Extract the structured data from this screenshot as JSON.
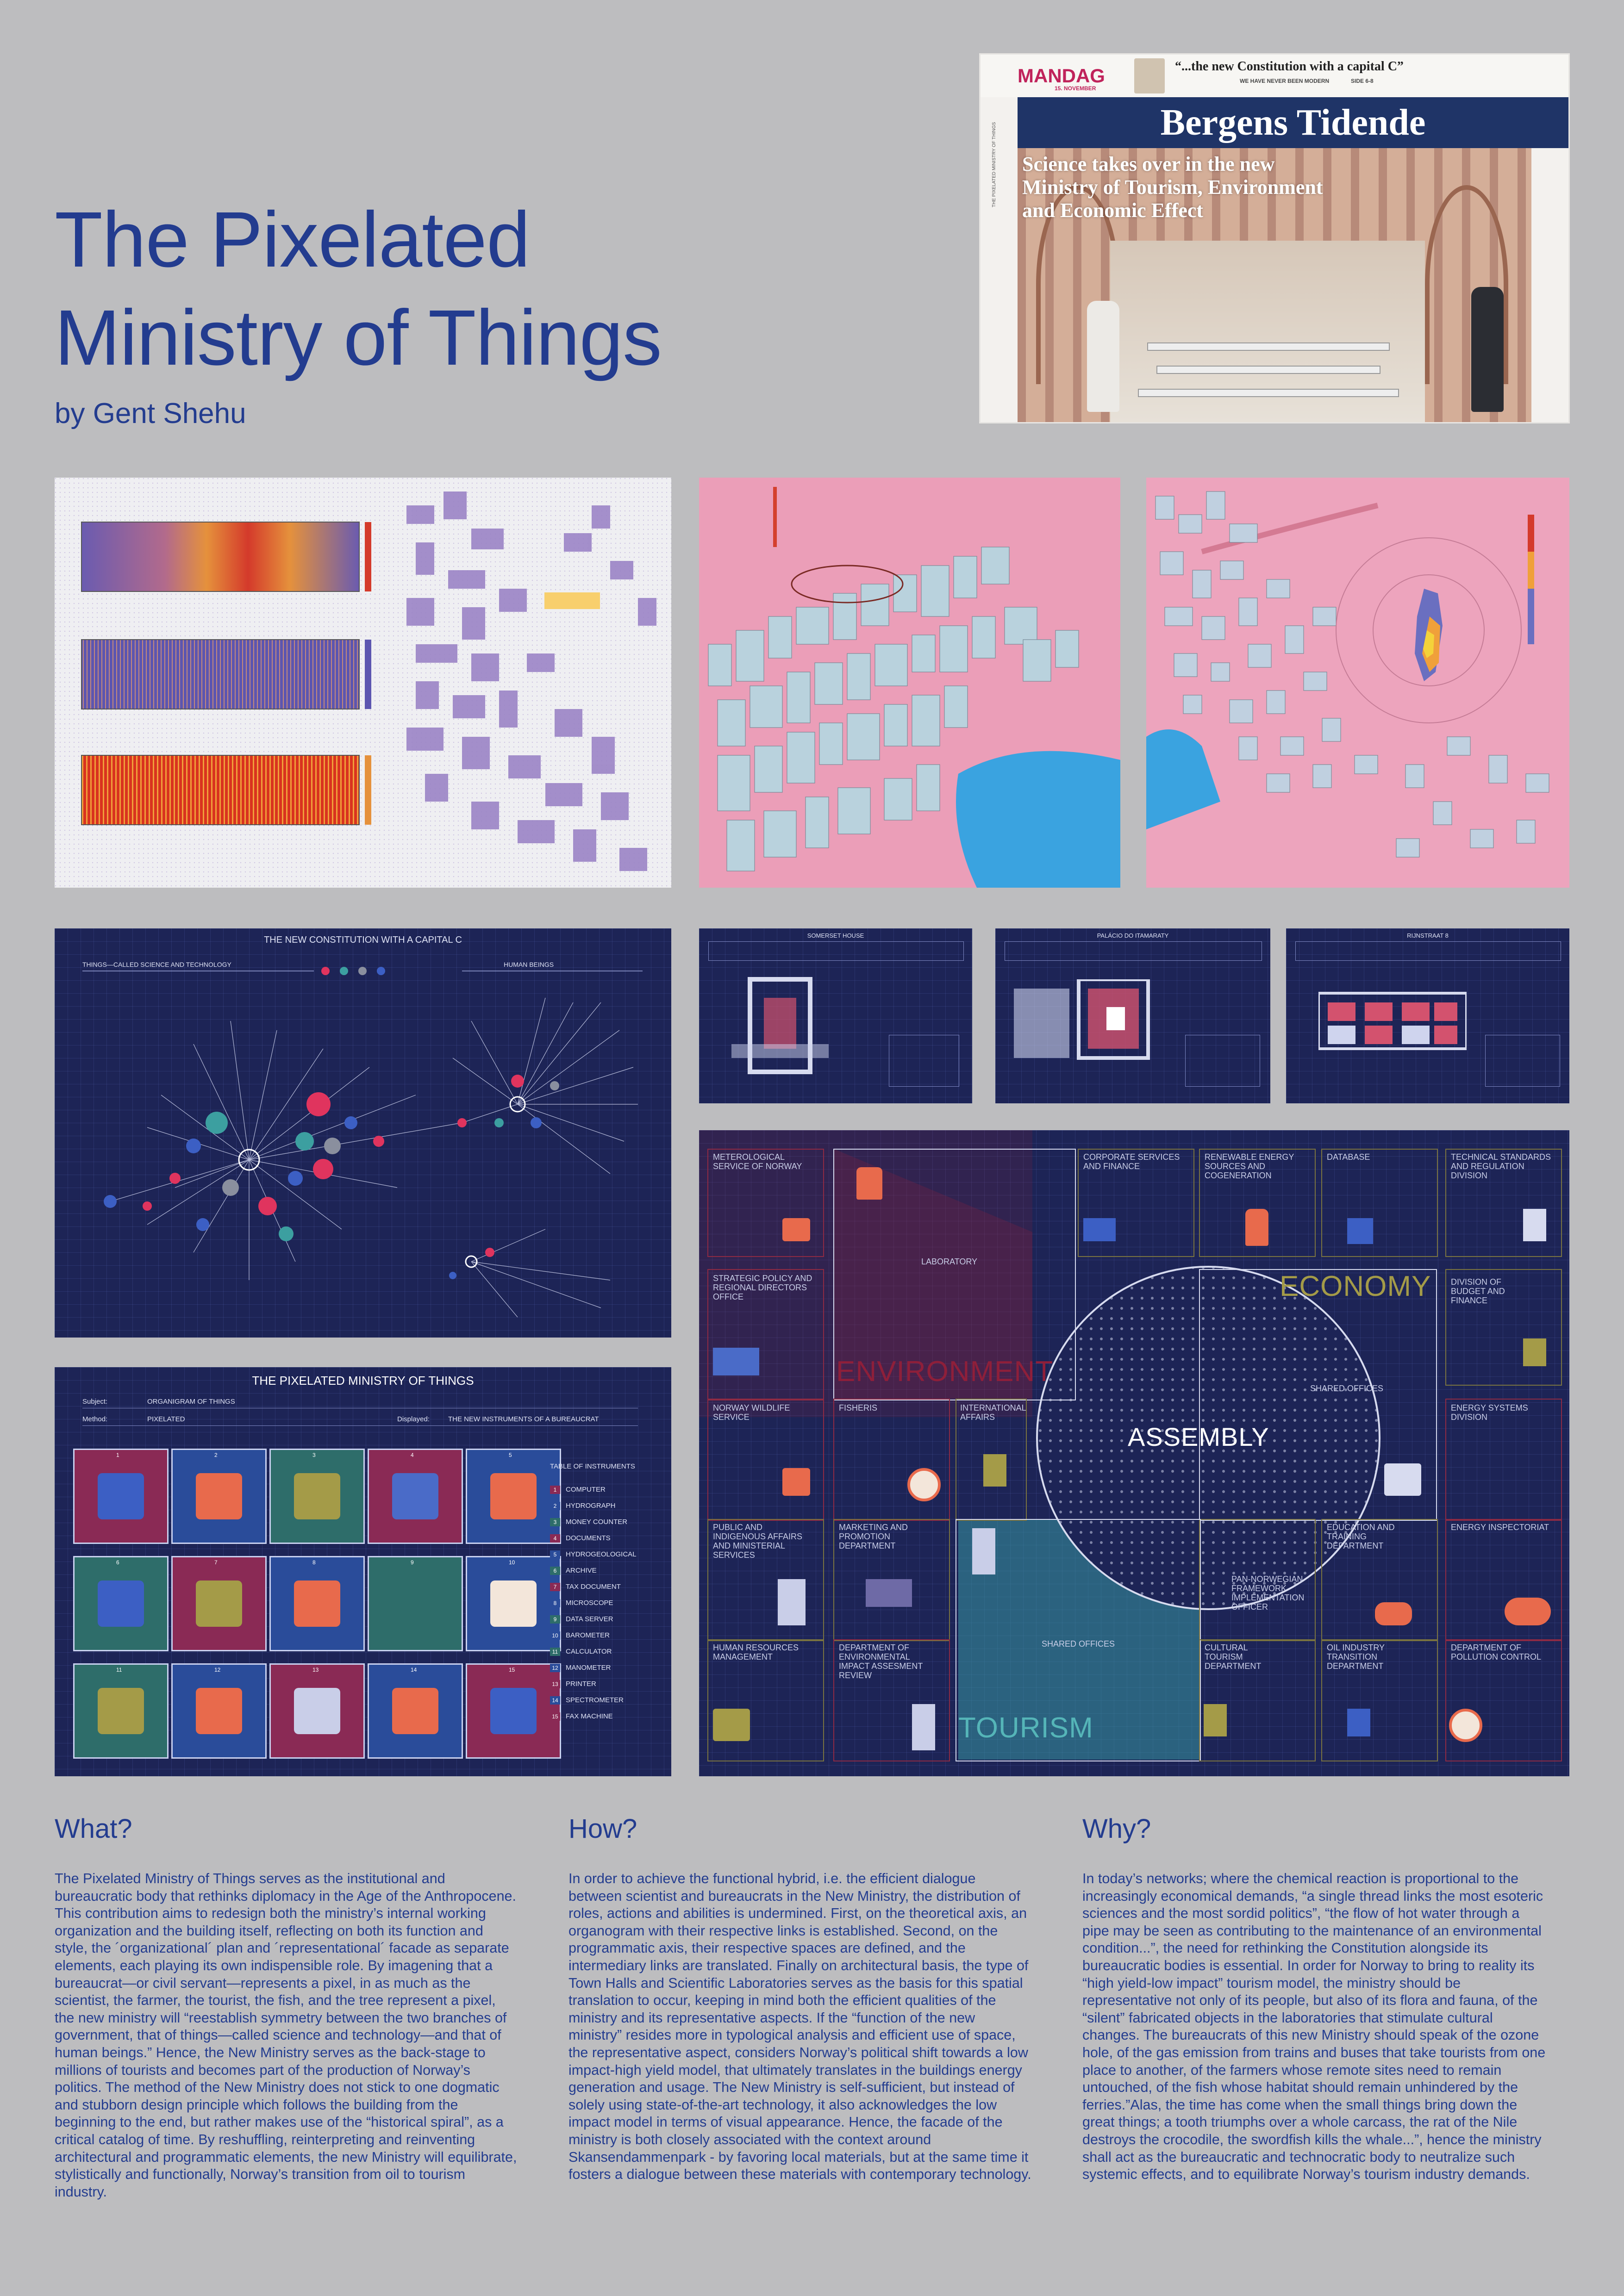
{
  "poster": {
    "title_line1": "The Pixelated",
    "title_line2": "Ministry of Things",
    "author": "by Gent Shehu"
  },
  "newspaper": {
    "day": "MANDAG",
    "date": "15. NOVEMBER",
    "quote": "“...the new Constitution with a capital C”",
    "subline": "WE HAVE NEVER BEEN MODERN",
    "subline_page": "SIDE 6-8",
    "masthead": "Bergens Tidende",
    "headline": "Science takes over in the new Ministry of Tourism, Environment and Economic Effect",
    "side_text": "THE PIXELATED MINISTRY OF THINGS"
  },
  "constitution": {
    "title": "THE NEW CONSTITUTION WITH A CAPITAL C",
    "left_label": "THINGS—CALLED SCIENCE AND TECHNOLOGY",
    "right_label": "HUMAN BEINGS"
  },
  "organigram": {
    "title": "THE PIXELATED MINISTRY OF THINGS",
    "subject_label": "Subject:",
    "subject_value": "ORGANIGRAM OF THINGS",
    "method_label": "Method:",
    "method_value": "PIXELATED",
    "displayed_label": "Displayed:",
    "displayed_value": "THE NEW INSTRUMENTS OF A BUREAUCRAT",
    "table_title": "TABLE OF INSTRUMENTS",
    "instruments": [
      {
        "n": "1",
        "name": "COMPUTER",
        "color": "#8a2a55"
      },
      {
        "n": "2",
        "name": "HYDROGRAPH",
        "color": "#2a4c9a"
      },
      {
        "n": "3",
        "name": "MONEY COUNTER",
        "color": "#2e6d6a"
      },
      {
        "n": "4",
        "name": "DOCUMENTS",
        "color": "#8a2a55"
      },
      {
        "n": "5",
        "name": "HYDROGEOLOGICAL",
        "color": "#2a4c9a"
      },
      {
        "n": "6",
        "name": "ARCHIVE",
        "color": "#2e6d6a"
      },
      {
        "n": "7",
        "name": "TAX DOCUMENT",
        "color": "#8a2a55"
      },
      {
        "n": "8",
        "name": "MICROSCOPE",
        "color": "#2a4c9a"
      },
      {
        "n": "9",
        "name": "DATA SERVER",
        "color": "#2e6d6a"
      },
      {
        "n": "10",
        "name": "BAROMETER",
        "color": "#2a4c9a"
      },
      {
        "n": "11",
        "name": "CALCULATOR",
        "color": "#2e6d6a"
      },
      {
        "n": "12",
        "name": "MANOMETER",
        "color": "#2a4c9a"
      },
      {
        "n": "13",
        "name": "PRINTER",
        "color": "#8a2a55"
      },
      {
        "n": "14",
        "name": "SPECTROMETER",
        "color": "#2a4c9a"
      },
      {
        "n": "15",
        "name": "FAX MACHINE",
        "color": "#8a2a55"
      }
    ]
  },
  "plans": {
    "plan1_title": "SOMERSET HOUSE",
    "plan2_title": "PALÁCIO DO ITAMARATY",
    "plan3_title": "RIJNSTRAAT 8"
  },
  "floorplan": {
    "rooms": {
      "met": "METEROLOGICAL SERVICE OF NORWAY",
      "corp": "CORPORATE SERVICES AND FINANCE",
      "renew": "RENEWABLE ENERGY SOURCES AND COGENERATION",
      "database": "DATABASE",
      "tech": "TECHNICAL STANDARDS AND REGULATION DIVISION",
      "lab": "LABORATORY",
      "strategic": "STRATEGIC POLICY AND REGIONAL DIRECTORS OFFICE",
      "budget": "DIVISION OF BUDGET AND FINANCE",
      "shared1": "SHARED OFFICES",
      "wildlife": "NORWAY WILDLIFE SERVICE",
      "fisheris": "FISHERIS",
      "intl": "INTERNATIONAL AFFAIRS",
      "energy_sys": "ENERGY SYSTEMS DIVISION",
      "public": "PUBLIC AND INDIGENOUS AFFAIRS AND MINISTERIAL SERVICES",
      "marketing": "MARKETING AND PROMOTION DEPARTMENT",
      "education": "EDUCATION AND TRAINING DEPARTMENT",
      "inspectoriat": "ENERGY INSPECTORIAT",
      "pan": "PAN-NORWEGIAN FRAMEWORK IMPLEMENTATION OFFICER",
      "hr": "HUMAN RESOURCES MANAGEMENT",
      "dept_env": "DEPARTMENT OF ENVIRONMENTAL IMPACT ASSESMENT REVIEW",
      "shared2": "SHARED OFFICES",
      "cultural": "CULTURAL TOURISM DEPARTMENT",
      "oil": "OIL INDUSTRY TRANSITION DEPARTMENT",
      "pollution": "DEPARTMENT OF POLLUTION CONTROL"
    },
    "economy": "ECONOMY",
    "environment": "ENVIRONMENT",
    "tourism": "TOURISM",
    "assembly": "ASSEMBLY",
    "colors": {
      "economy": "#a49b48",
      "environment": "#8e1f3a",
      "tourism": "#55b5b8"
    }
  },
  "sections": {
    "what_title": "What?",
    "what_body": "The Pixelated Ministry of Things serves as the institutional and bureaucratic body that rethinks diplomacy in the Age of the Anthropocene. This contribution aims to redesign both the ministry’s internal working organization and the building itself, reflecting on both its function and style, the ´organizational´ plan and ´representational´ facade as separate elements, each playing its own indispensible role. By imagening that a bureaucrat—or civil servant—represents a pixel, in as much as the scientist, the farmer, the tourist, the fish, and the tree represent a pixel, the new ministry will “reestablish symmetry between the two branches of government, that of things—called science and technology—and that of human beings.” Hence, the New Ministry serves as the back-stage to millions of tourists and becomes part of the production of Norway’s politics. The method of the New Ministry does not stick to one dogmatic and stubborn design principle which follows the building from the beginning to the end, but rather makes use of the “historical spiral”, as a critical catalog of time. By reshuffling, reinterpreting and reinventing architectural and programmatic elements, the new Ministry will equilibrate, stylistically and functionally, Norway’s transition from oil to tourism industry.",
    "how_title": "How?",
    "how_body": "In order to achieve the functional hybrid, i.e. the efficient dialogue between scientist and bureaucrats in the New Ministry, the distribution of roles, actions and abilities is undermined. First, on the theoretical axis, an organogram with their respective links is established. Second, on the programmatic axis, their respective spaces are defined, and the intermediary links are translated. Finally on architectural basis, the type of Town Halls and Scientific Laboratories serves as the basis for this spatial translation to occur, keeping in mind both the efficient qualities of the ministry and its representative aspects. If the “function of the new ministry” resides more in typological analysis and efficient use of space, the representative aspect, considers Norway’s political shift towards a low impact-high yield model, that ultimately translates in the buildings energy generation and usage. The New Ministry is self-sufficient, but instead of solely using state-of-the-art technology, it also acknowledges the low impact model in terms of visual appearance. Hence, the facade of the ministry is both closely associated with the context around Skansendammenpark - by favoring local materials, but at the same time it fosters a dialogue between these materials with contemporary technology.",
    "why_title": "Why?",
    "why_body": "In today’s networks; where the chemical reaction is proportional to the increasingly economical demands, “a single thread links the most esoteric sciences and the most sordid politics”, “the flow of hot water through a pipe may be seen as contributing to the maintenance of an environmental condition...”, the need for rethinking the Constitution alongside its bureaucratic bodies is essential. In order for Norway to bring to reality its “high yield-low impact” tourism model, the ministry should be representative not only of its people, but also of its flora and fauna, of the “silent” fabricated objects in the laboratories that stimulate cultural changes. The bureaucrats of this new Ministry should speak of the ozone hole, of the gas emission from trains and buses that take tourists from one place to another, of the farmers whose remote sites need to remain untouched, of the fish whose habitat should remain unhindered by the ferries.”Alas, the time has come when the small things bring down the great things; a tooth triumphs over a whole carcass, the rat of the Nile destroys the crocodile, the swordfish kills the whale...”, hence the ministry shall act as the bureaucratic and technocratic body to neutralize such systemic effects, and to equilibrate Norway’s tourism industry demands."
  },
  "colors": {
    "background": "#bdbdbf",
    "text": "#233c8f",
    "panel_dark": "#1d2456",
    "map_pink": "#eb9eb8",
    "map_lilac": "#9b84c6"
  }
}
